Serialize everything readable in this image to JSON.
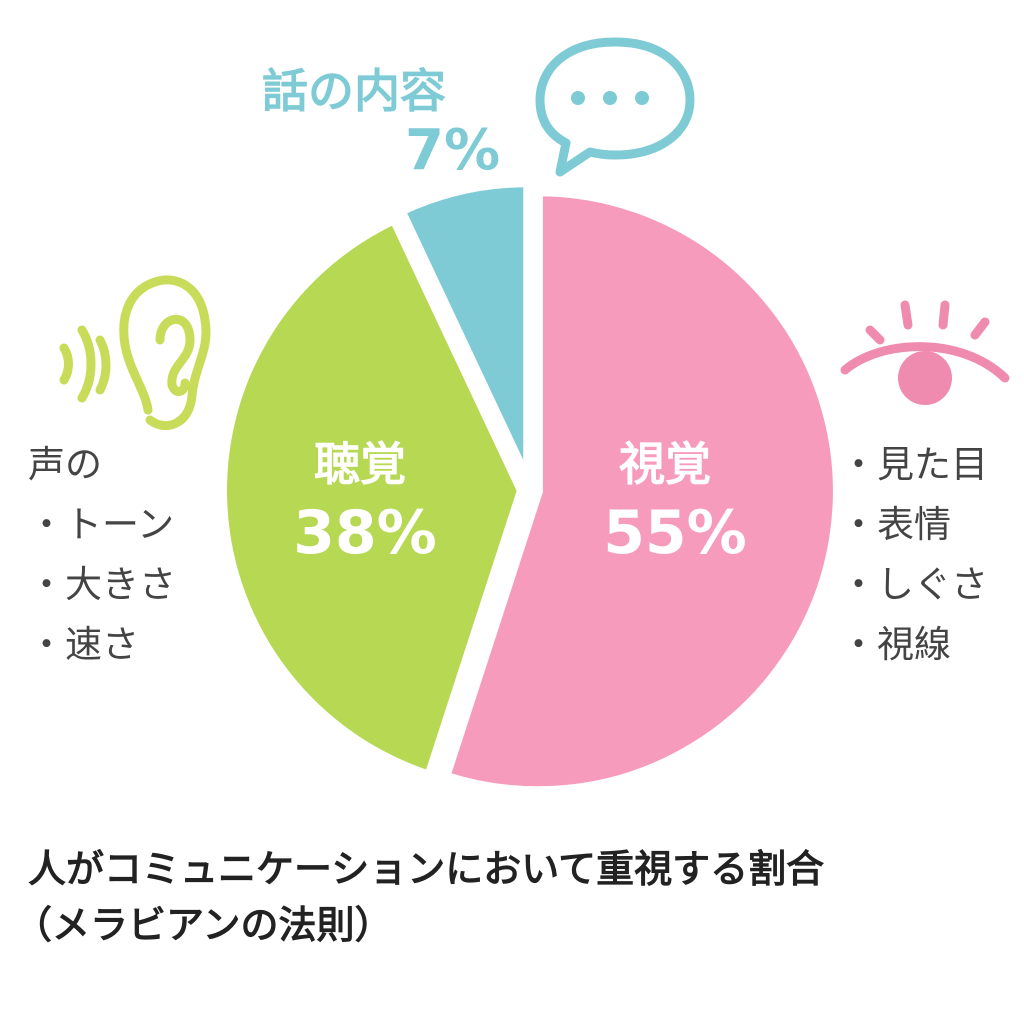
{
  "chart_data": {
    "type": "pie",
    "title": "人がコミュニケーションにおいて重視する割合",
    "subtitle": "（メラビアンの法則）",
    "slices": [
      {
        "name": "視覚",
        "value": 55,
        "label": "55%",
        "color": "#F79BBD",
        "icon": "eye-icon",
        "details": [
          "・見た目",
          "・表情",
          "・しぐさ",
          "・視線"
        ]
      },
      {
        "name": "聴覚",
        "value": 38,
        "label": "38%",
        "color": "#B6D852",
        "icon": "ear-icon",
        "details_heading": "声の",
        "details": [
          "・トーン",
          "・大きさ",
          "・速さ"
        ]
      },
      {
        "name": "話の内容",
        "value": 7,
        "label": "7%",
        "color": "#7ECBD6",
        "icon": "speech-bubble-icon"
      }
    ]
  }
}
